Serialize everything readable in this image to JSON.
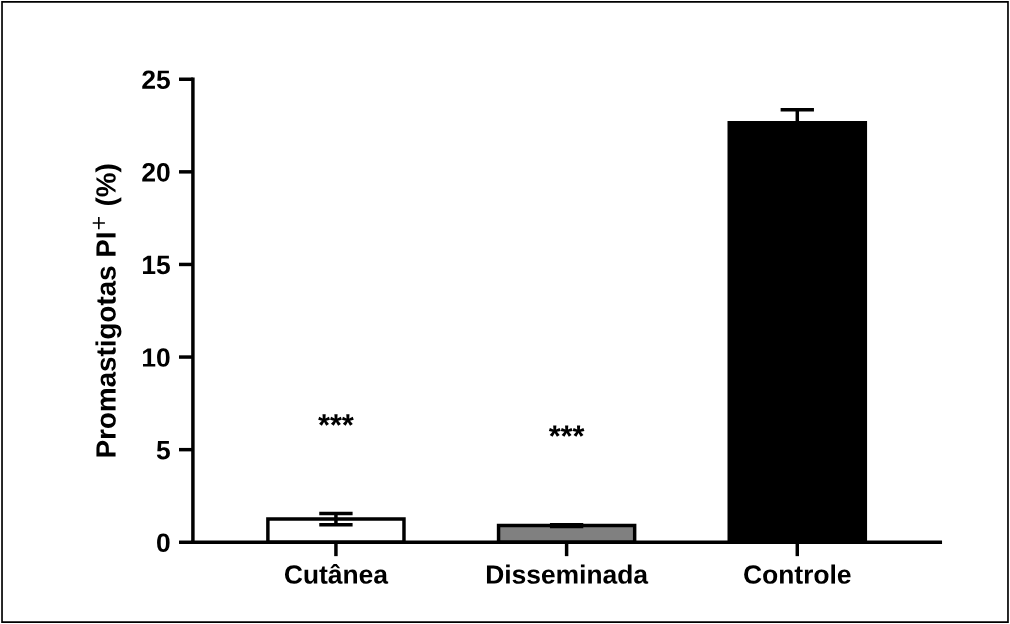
{
  "chart_data": {
    "type": "bar",
    "ylabel": "Promastigotas PI$^{+}$ (%)",
    "categories": [
      "Cutânea",
      "Disseminada",
      "Controle"
    ],
    "values": [
      1.25,
      0.9,
      22.65
    ],
    "errors": [
      0.3,
      0.05,
      0.7
    ],
    "colors": [
      "#ffffff",
      "#808080",
      "#000000"
    ],
    "ylim": [
      0,
      25
    ],
    "yticks": [
      0,
      5,
      10,
      15,
      20,
      25
    ],
    "grid": false,
    "annotations": [
      "***",
      "***"
    ]
  }
}
